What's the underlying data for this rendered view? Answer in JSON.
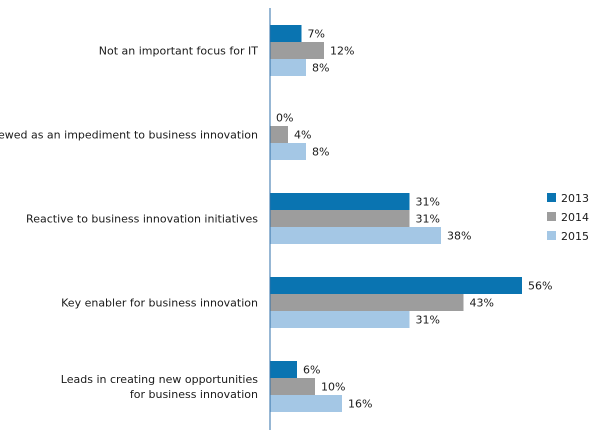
{
  "chart_data": {
    "type": "bar",
    "orientation": "horizontal",
    "categories": [
      [
        "Not an important focus for IT"
      ],
      [
        "Viewed as an impediment to business innovation"
      ],
      [
        "Reactive to business innovation initiatives"
      ],
      [
        "Key enabler for business innovation"
      ],
      [
        "Leads in creating new opportunities",
        "for business innovation"
      ]
    ],
    "series": [
      {
        "name": "2013",
        "color": "#0a74b1",
        "values": [
          7,
          0,
          31,
          56,
          6
        ]
      },
      {
        "name": "2014",
        "color": "#9d9d9d",
        "values": [
          12,
          4,
          31,
          43,
          10
        ]
      },
      {
        "name": "2015",
        "color": "#a4c7e5",
        "values": [
          8,
          8,
          38,
          31,
          16
        ]
      }
    ],
    "value_suffix": "%",
    "xlim": [
      0,
      56
    ],
    "legend_position": "right",
    "axis_color": "#2f6fa8"
  }
}
